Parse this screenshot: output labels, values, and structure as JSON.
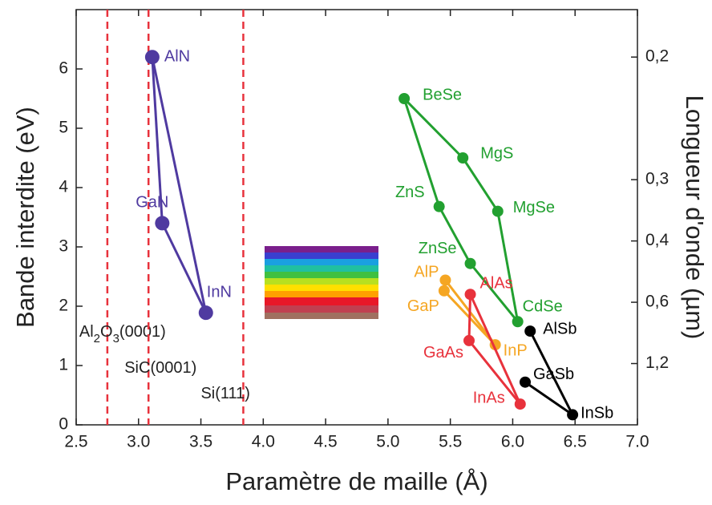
{
  "chart_data": {
    "type": "scatter",
    "xlabel": "Paramètre de maille (Å)",
    "ylabel": "Bande interdite (eV)",
    "y2label": "Longueur d'onde (µm)",
    "xlim": [
      2.5,
      7.0
    ],
    "ylim": [
      0,
      7
    ],
    "xticks": [
      2.5,
      {
        "value": 3,
        "label": "3.0"
      },
      3.5,
      {
        "value": 4,
        "label": "4.0"
      },
      4.5,
      {
        "value": 5,
        "label": "5.0"
      },
      5.5,
      {
        "value": 6,
        "label": "6.0"
      },
      6.5,
      {
        "value": 7,
        "label": "7.0"
      }
    ],
    "yticks": [
      0,
      1,
      2,
      3,
      4,
      5,
      6
    ],
    "y2_scale": {
      "type": "reciprocal",
      "constant": 1.24
    },
    "y2ticks": [
      {
        "value": 0.2,
        "label": "0,2"
      },
      {
        "value": 0.3,
        "label": "0,3"
      },
      {
        "value": 0.4,
        "label": "0,4"
      },
      {
        "value": 0.6,
        "label": "0,6"
      },
      {
        "value": 1.2,
        "label": "1,2"
      }
    ],
    "substrates": {
      "color": "#e8323c",
      "labels": [
        "Al2O3(0001)",
        "SiC(0001)",
        "Si(111)"
      ],
      "x": [
        2.75,
        3.08,
        3.84
      ]
    },
    "series": [
      {
        "color": "#4f3aa0",
        "labels": [
          "AlN",
          "GaN",
          "InN"
        ],
        "x": [
          3.11,
          3.19,
          3.54
        ],
        "y": [
          6.2,
          3.4,
          1.89
        ],
        "links": [
          [
            0,
            1
          ],
          [
            0,
            2
          ],
          [
            1,
            2
          ]
        ]
      },
      {
        "color": "#22a030",
        "labels": [
          "BeSe",
          "MgS",
          "MgSe",
          "ZnS",
          "ZnSe",
          "CdSe"
        ],
        "x": [
          5.13,
          5.6,
          5.88,
          5.41,
          5.66,
          6.04
        ],
        "y": [
          5.5,
          4.5,
          3.6,
          3.68,
          2.72,
          1.74
        ],
        "links": [
          [
            0,
            1
          ],
          [
            1,
            2
          ],
          [
            2,
            5
          ],
          [
            0,
            3
          ],
          [
            3,
            4
          ],
          [
            4,
            5
          ]
        ]
      },
      {
        "color": "#f5a623",
        "labels": [
          "AlP",
          "GaP",
          "InP"
        ],
        "x": [
          5.46,
          5.45,
          5.86
        ],
        "y": [
          2.44,
          2.26,
          1.35
        ],
        "links": [
          [
            0,
            2
          ],
          [
            1,
            2
          ]
        ]
      },
      {
        "color": "#e8323c",
        "labels": [
          "AlAs",
          "GaAs",
          "InAs"
        ],
        "x": [
          5.66,
          5.65,
          6.06
        ],
        "y": [
          2.2,
          1.42,
          0.35
        ],
        "links": [
          [
            0,
            1
          ],
          [
            0,
            2
          ],
          [
            1,
            2
          ]
        ]
      },
      {
        "color": "#000000",
        "labels": [
          "AlSb",
          "GaSb",
          "InSb"
        ],
        "x": [
          6.14,
          6.1,
          6.48
        ],
        "y": [
          1.58,
          0.72,
          0.17
        ],
        "links": [
          [
            0,
            2
          ],
          [
            1,
            2
          ]
        ]
      }
    ]
  }
}
